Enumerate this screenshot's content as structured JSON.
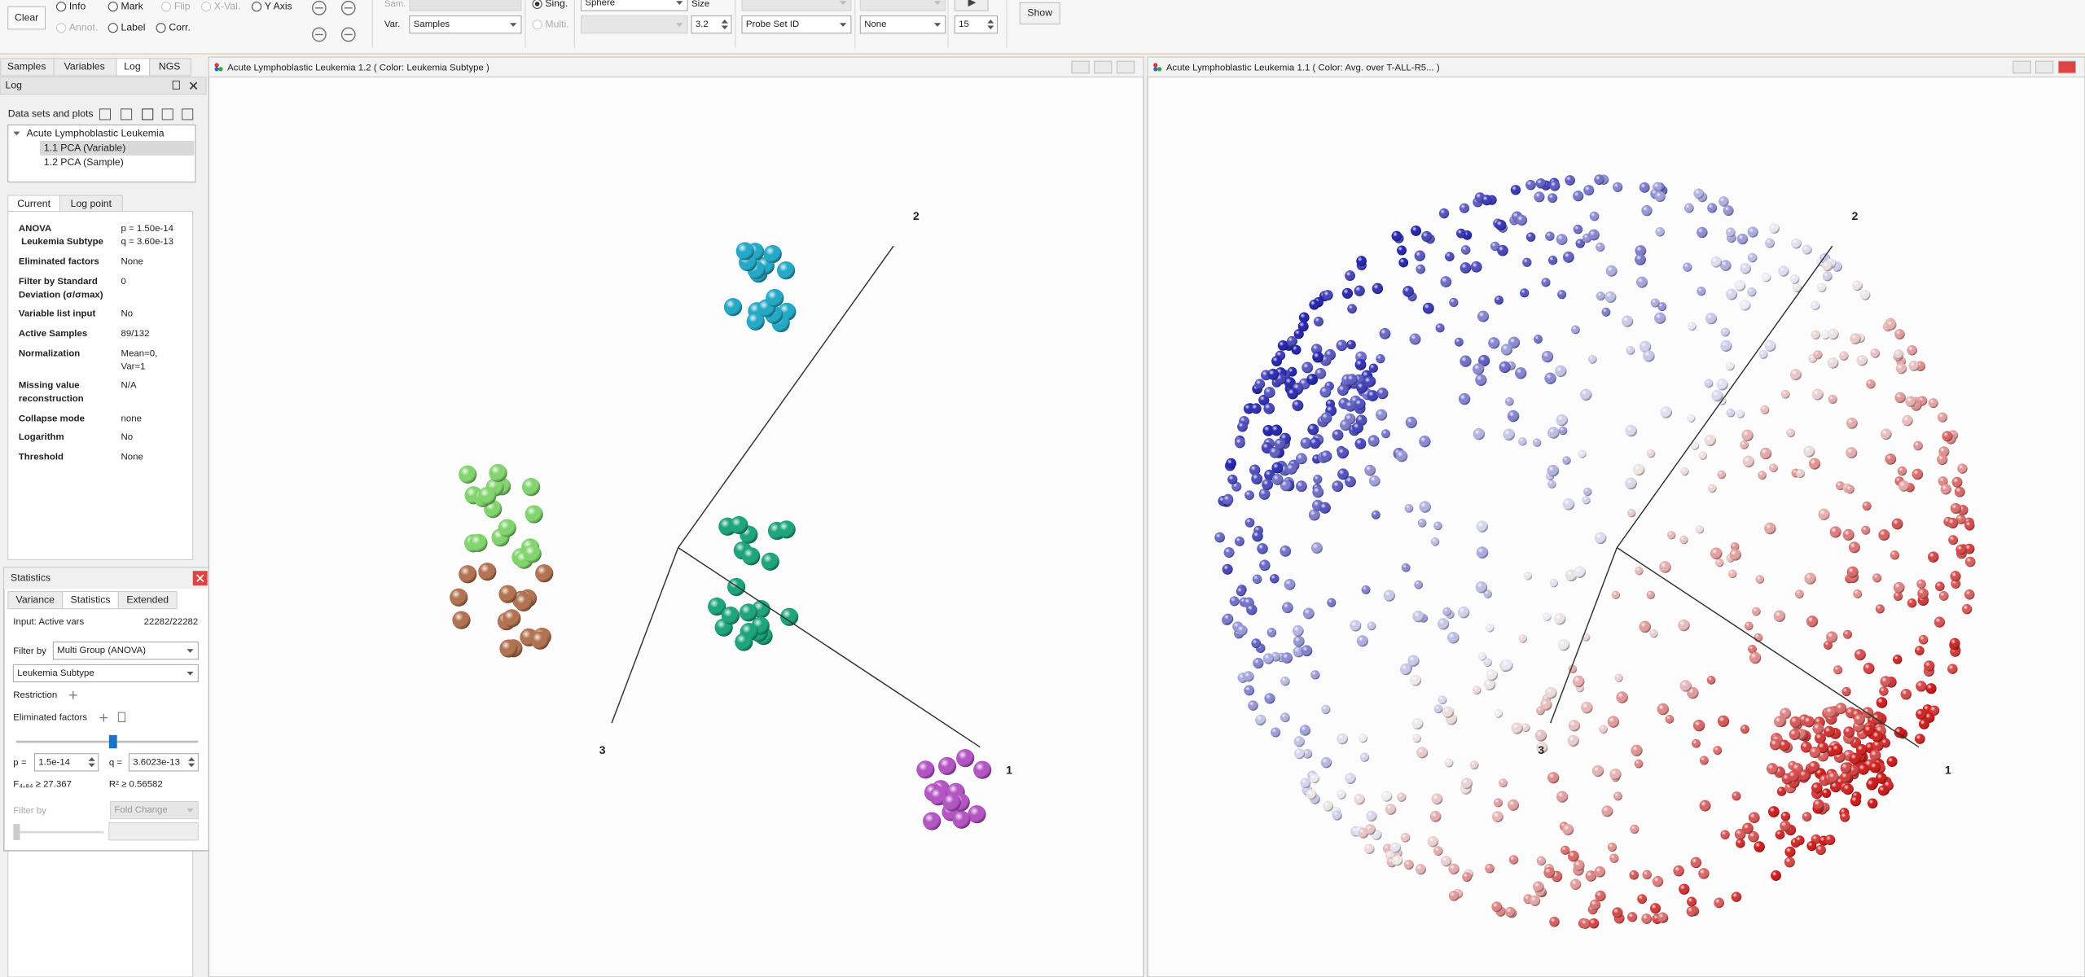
{
  "toolbar": {
    "clear": "Clear",
    "radios": [
      "Info",
      "Mark",
      "Flip",
      "X-Val.",
      "Y Axis",
      "Annot.",
      "Label",
      "Corr."
    ],
    "sam_label": "Sam.",
    "var_label": "Var.",
    "var_value": "Samples",
    "single": "Sing.",
    "multi": "Multi.",
    "shape": "Sphere",
    "size_label": "Size",
    "size_value": "3.2",
    "id_field": "Probe Set ID",
    "color_field": "None",
    "count": "15",
    "show": "Show"
  },
  "left_panel": {
    "tabs": [
      "Samples",
      "Variables",
      "Log",
      "NGS"
    ],
    "log_title": "Log",
    "datasets_label": "Data sets and plots",
    "tree": [
      "Acute Lymphoblastic Leukemia",
      "1.1 PCA (Variable)",
      "1.2 PCA (Sample)"
    ],
    "subtabs": [
      "Current",
      "Log point"
    ],
    "properties": [
      {
        "key": [
          "ANOVA",
          "Leukemia Subtype"
        ],
        "value": [
          "p = 1.50e-14",
          "q = 3.60e-13"
        ]
      },
      {
        "key": [
          "Eliminated factors"
        ],
        "value": [
          "None"
        ]
      },
      {
        "key": [
          "Filter by Standard",
          "Deviation (σ/σmax)"
        ],
        "value": [
          "0"
        ]
      },
      {
        "key": [
          "Variable list input"
        ],
        "value": [
          "No"
        ]
      },
      {
        "key": [
          "Active Samples"
        ],
        "value": [
          "89/132"
        ]
      },
      {
        "key": [
          "Normalization"
        ],
        "value": [
          "Mean=0,",
          "Var=1"
        ]
      },
      {
        "key": [
          "Missing value",
          "reconstruction"
        ],
        "value": [
          "N/A"
        ]
      },
      {
        "key": [
          "Collapse mode"
        ],
        "value": [
          "none"
        ]
      },
      {
        "key": [
          "Logarithm"
        ],
        "value": [
          "No"
        ]
      },
      {
        "key": [
          "Threshold"
        ],
        "value": [
          "None"
        ]
      }
    ]
  },
  "statistics": {
    "title": "Statistics",
    "tabs": [
      "Variance",
      "Statistics",
      "Extended"
    ],
    "input_label": "Input: Active vars",
    "input_value": "22282/22282",
    "filter_label": "Filter by",
    "filter_value": "Multi Group (ANOVA)",
    "factor_value": "Leukemia Subtype",
    "restriction": "Restriction",
    "eliminated": "Eliminated factors",
    "p_label": "p =",
    "p_value": "1.5e-14",
    "q_label": "q =",
    "q_value": "3.6023e-13",
    "f_stat": "F₄,₈₄ ≥ 27.367",
    "r2": "R² ≥ 0.56582",
    "filter2_label": "Filter by",
    "filter2_value": "Fold Change"
  },
  "plots": [
    {
      "title": "Acute Lymphoblastic Leukemia 1.2 ( Color: Leukemia Subtype )",
      "axes": [
        "1",
        "2",
        "3"
      ]
    },
    {
      "title": "Acute Lymphoblastic Leukemia 1.1 ( Color: Avg. over T-ALL-R5... )",
      "axes": [
        "1",
        "2",
        "3"
      ]
    }
  ]
}
